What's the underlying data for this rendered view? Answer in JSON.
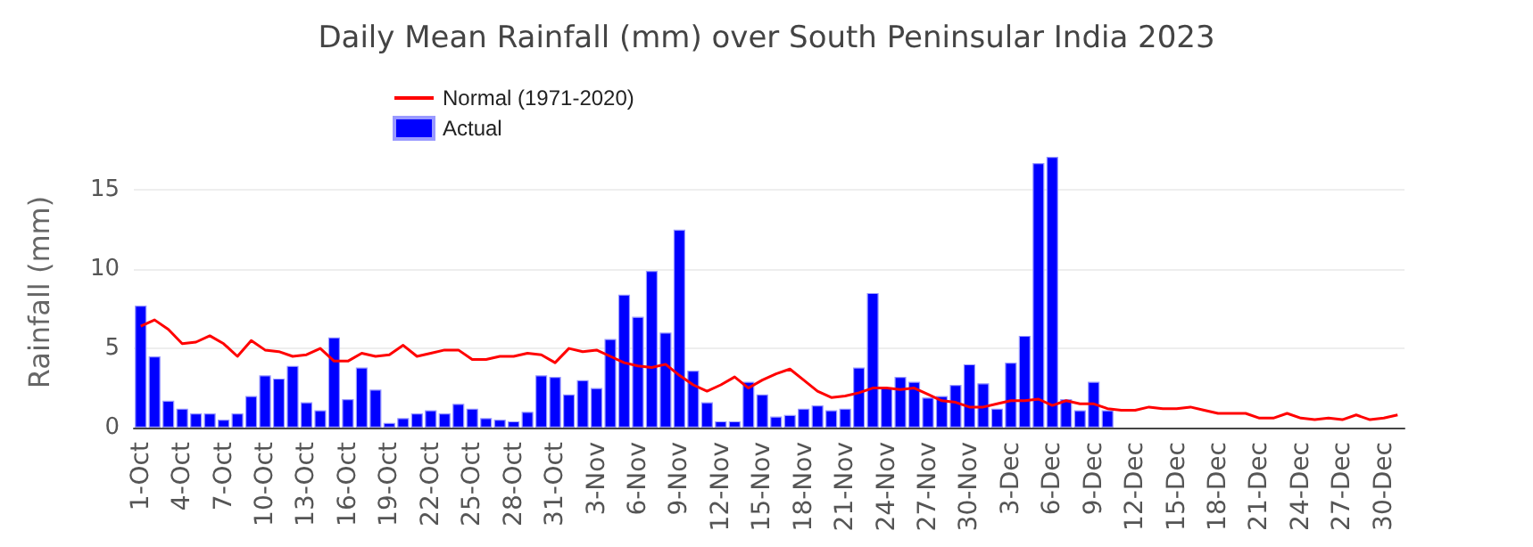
{
  "chart_data": {
    "type": "bar",
    "title": "Daily Mean Rainfall (mm) over South Peninsular India 2023",
    "ylabel": "Rainfall (mm)",
    "categories": [
      "1-Oct",
      null,
      null,
      "4-Oct",
      null,
      null,
      "7-Oct",
      null,
      null,
      "10-Oct",
      null,
      null,
      "13-Oct",
      null,
      null,
      "16-Oct",
      null,
      null,
      "19-Oct",
      null,
      null,
      "22-Oct",
      null,
      null,
      "25-Oct",
      null,
      null,
      "28-Oct",
      null,
      null,
      "31-Oct",
      null,
      null,
      "3-Nov",
      null,
      null,
      "6-Nov",
      null,
      null,
      "9-Nov",
      null,
      null,
      "12-Nov",
      null,
      null,
      "15-Nov",
      null,
      null,
      "18-Nov",
      null,
      null,
      "21-Nov",
      null,
      null,
      "24-Nov",
      null,
      null,
      "27-Nov",
      null,
      null,
      "30-Nov",
      null,
      null,
      "3-Dec",
      null,
      null,
      "6-Dec",
      null,
      null,
      "9-Dec",
      null,
      null,
      "12-Dec",
      null,
      null,
      "15-Dec",
      null,
      null,
      "18-Dec",
      null,
      null,
      "21-Dec",
      null,
      null,
      "24-Dec",
      null,
      null,
      "27-Dec",
      null,
      null,
      "30-Dec",
      null
    ],
    "series": [
      {
        "name": "Normal (1971-2020)",
        "type": "line",
        "color": "#ff0000",
        "values": [
          6.4,
          6.8,
          6.2,
          5.3,
          5.4,
          5.8,
          5.3,
          4.5,
          5.5,
          4.9,
          4.8,
          4.5,
          4.6,
          5.0,
          4.2,
          4.2,
          4.7,
          4.5,
          4.6,
          5.2,
          4.5,
          4.7,
          4.9,
          4.9,
          4.3,
          4.3,
          4.5,
          4.5,
          4.7,
          4.6,
          4.1,
          5.0,
          4.8,
          4.9,
          4.5,
          4.1,
          3.9,
          3.8,
          4.0,
          3.3,
          2.7,
          2.3,
          2.7,
          3.2,
          2.5,
          3.0,
          3.4,
          3.7,
          3.0,
          2.3,
          1.9,
          2.0,
          2.2,
          2.5,
          2.5,
          2.4,
          2.5,
          2.1,
          1.7,
          1.6,
          1.3,
          1.3,
          1.5,
          1.7,
          1.7,
          1.8,
          1.4,
          1.7,
          1.5,
          1.5,
          1.2,
          1.1,
          1.1,
          1.3,
          1.2,
          1.2,
          1.3,
          1.1,
          0.9,
          0.9,
          0.9,
          0.6,
          0.6,
          0.9,
          0.6,
          0.5,
          0.6,
          0.5,
          0.8,
          0.5,
          0.6,
          0.8
        ]
      },
      {
        "name": "Actual",
        "color": "#0000ff",
        "values": [
          7.7,
          4.5,
          1.7,
          1.2,
          0.9,
          0.9,
          0.5,
          0.9,
          2.0,
          3.3,
          3.1,
          3.9,
          1.6,
          1.1,
          5.7,
          1.8,
          3.8,
          2.4,
          0.3,
          0.6,
          0.9,
          1.1,
          0.9,
          1.5,
          1.2,
          0.6,
          0.5,
          0.4,
          1.0,
          3.3,
          3.2,
          2.1,
          3.0,
          2.5,
          5.6,
          8.4,
          7.0,
          9.9,
          6.0,
          12.5,
          3.6,
          1.6,
          0.4,
          0.4,
          2.9,
          2.1,
          0.7,
          0.8,
          1.2,
          1.4,
          1.1,
          1.2,
          3.8,
          8.5,
          2.5,
          3.2,
          2.9,
          1.9,
          2.0,
          2.7,
          4.0,
          2.8,
          1.2,
          4.1,
          5.8,
          16.7,
          17.1,
          1.8,
          1.1,
          2.9,
          1.1,
          null,
          null,
          null,
          null,
          null,
          null,
          null,
          null,
          null,
          null,
          null,
          null,
          null,
          null,
          null,
          null,
          null,
          null,
          null,
          null,
          null
        ]
      }
    ],
    "ylim": [
      0,
      17.1
    ],
    "yticks": [
      0,
      5,
      10,
      15
    ],
    "grid": "y",
    "legend": "top left"
  }
}
